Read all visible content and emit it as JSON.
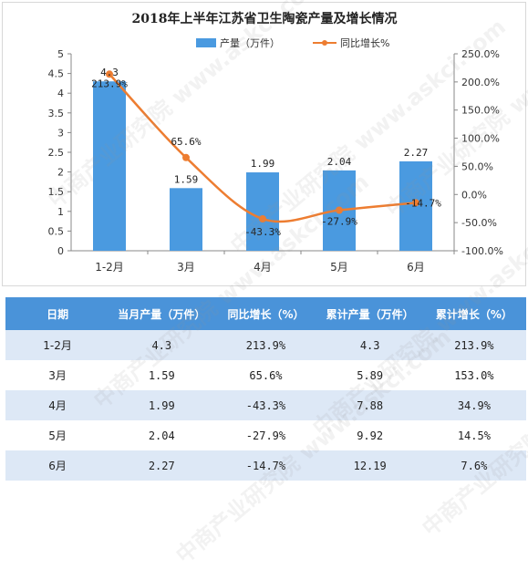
{
  "chart_data": {
    "type": "bar",
    "title": "2018年上半年江苏省卫生陶瓷产量及增长情况",
    "categories": [
      "1-2月",
      "3月",
      "4月",
      "5月",
      "6月"
    ],
    "series": [
      {
        "name": "产量（万件）",
        "kind": "bar",
        "axis": "left",
        "values": [
          4.3,
          1.59,
          1.99,
          2.04,
          2.27
        ],
        "labels": [
          "4.3",
          "1.59",
          "1.99",
          "2.04",
          "2.27"
        ],
        "color": "#4a9ae0"
      },
      {
        "name": "同比增长%",
        "kind": "line",
        "axis": "right",
        "values": [
          213.9,
          65.6,
          -43.3,
          -27.9,
          -14.7
        ],
        "labels": [
          "213.9%",
          "65.6%",
          "-43.3%",
          "-27.9%",
          "-14.7%"
        ],
        "color": "#ed7d31"
      }
    ],
    "ylim_left": [
      0,
      5
    ],
    "ylim_right": [
      -100,
      250
    ],
    "yticks_left": [
      "0",
      "0.5",
      "1",
      "1.5",
      "2",
      "2.5",
      "3",
      "3.5",
      "4",
      "4.5",
      "5"
    ],
    "yticks_right": [
      "-100.0%",
      "-50.0%",
      "0.0%",
      "50.0%",
      "100.0%",
      "150.0%",
      "200.0%",
      "250.0%"
    ],
    "legend_position": "top-center",
    "grid": false
  },
  "table": {
    "headers": [
      "日期",
      "当月产量（万件）",
      "同比增长（%）",
      "累计产量（万件）",
      "累计增长（%）"
    ],
    "rows": [
      [
        "1-2月",
        "4.3",
        "213.9%",
        "4.3",
        "213.9%"
      ],
      [
        "3月",
        "1.59",
        "65.6%",
        "5.89",
        "153.0%"
      ],
      [
        "4月",
        "1.99",
        "-43.3%",
        "7.88",
        "34.9%"
      ],
      [
        "5月",
        "2.04",
        "-27.9%",
        "9.92",
        "14.5%"
      ],
      [
        "6月",
        "2.27",
        "-14.7%",
        "12.19",
        "7.6%"
      ]
    ]
  },
  "watermark": "中商产业研究院 www.askci.com"
}
